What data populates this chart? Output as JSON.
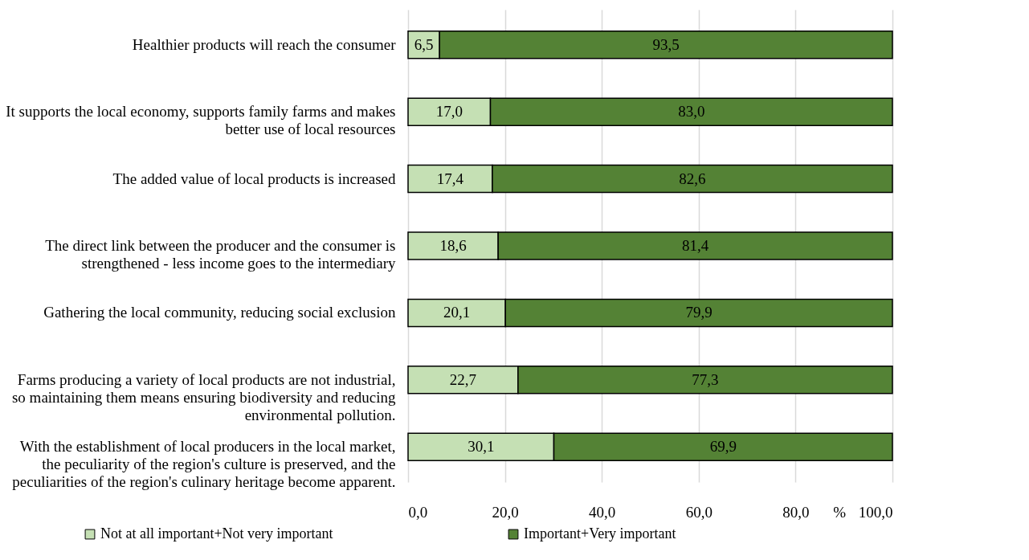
{
  "chart_data": {
    "type": "bar",
    "orientation": "horizontal",
    "stacked": true,
    "xlabel": "%",
    "categories": [
      "Healthier products will reach the consumer",
      "It supports the local economy, supports family farms and makes better use of local resources",
      "The added value of local products is increased",
      "The direct link between the producer and the consumer is strengthened - less income goes to the intermediary",
      "Gathering the local community, reducing social exclusion",
      "Farms producing a variety of local products are not industrial, so maintaining them means ensuring biodiversity and reducing environmental pollution.",
      "With the establishment of local producers in the local market, the peculiarity of the region's culture is preserved, and the peculiarities of the region's culinary heritage become apparent."
    ],
    "series": [
      {
        "name": "Not at all important+Not very important",
        "color": "#c5e0b4",
        "values": [
          6.5,
          17.0,
          17.4,
          18.6,
          20.1,
          22.7,
          30.1
        ],
        "value_labels": [
          "6,5",
          "17,0",
          "17,4",
          "18,6",
          "20,1",
          "22,7",
          "30,1"
        ]
      },
      {
        "name": "Important+Very important",
        "color": "#548235",
        "values": [
          93.5,
          83.0,
          82.6,
          81.4,
          79.9,
          77.3,
          69.9
        ],
        "value_labels": [
          "93,5",
          "83,0",
          "82,6",
          "81,4",
          "79,9",
          "77,3",
          "69,9"
        ]
      }
    ],
    "xlim": [
      0,
      100
    ],
    "xticks": [
      {
        "value": 0,
        "label": "0,0"
      },
      {
        "value": 20,
        "label": "20,0"
      },
      {
        "value": 40,
        "label": "40,0"
      },
      {
        "value": 60,
        "label": "60,0"
      },
      {
        "value": 80,
        "label": "80,0"
      },
      {
        "value": 100,
        "label": "100,0"
      }
    ],
    "grid": "x",
    "legend": "bottom"
  }
}
